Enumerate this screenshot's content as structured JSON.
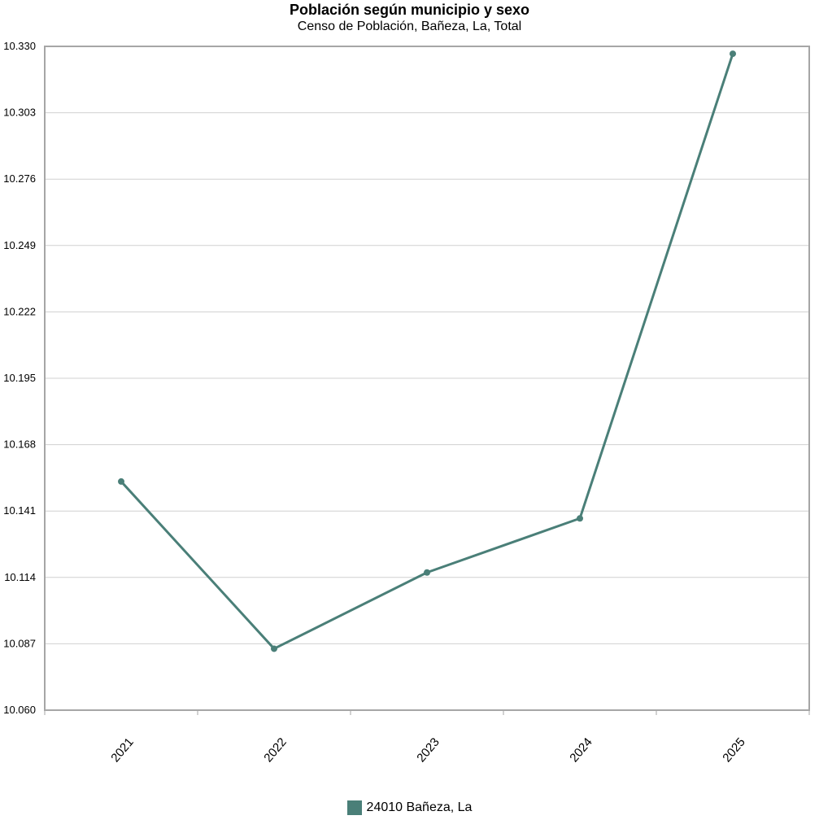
{
  "chart_data": {
    "type": "line",
    "title": "Población según municipio y sexo",
    "subtitle": "Censo de Población, Bañeza, La, Total",
    "xlabel": "",
    "ylabel": "",
    "categories": [
      "2021",
      "2022",
      "2023",
      "2024",
      "2025"
    ],
    "yticks": [
      "10.060",
      "10.087",
      "10.114",
      "10.141",
      "10.168",
      "10.195",
      "10.222",
      "10.249",
      "10.276",
      "10.303",
      "10.330"
    ],
    "ylim": [
      10060,
      10330
    ],
    "grid": true,
    "legend_position": "bottom",
    "series": [
      {
        "name": "24010 Bañeza, La",
        "values": [
          10153,
          10085,
          10116,
          10138,
          10327
        ],
        "color": "#4a7f78"
      }
    ]
  }
}
